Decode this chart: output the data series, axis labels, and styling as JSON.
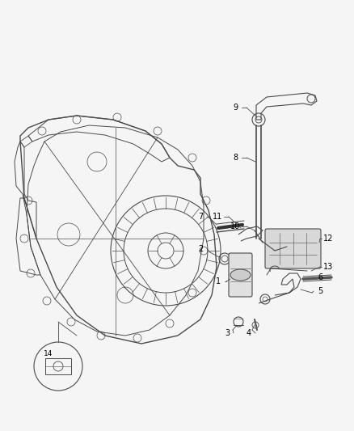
{
  "bg": "#f5f5f5",
  "lc": "#4a4a4a",
  "tc": "#000000",
  "fig_w": 4.38,
  "fig_h": 5.33,
  "dpi": 100,
  "xmin": 0,
  "xmax": 438,
  "ymin": 0,
  "ymax": 533
}
